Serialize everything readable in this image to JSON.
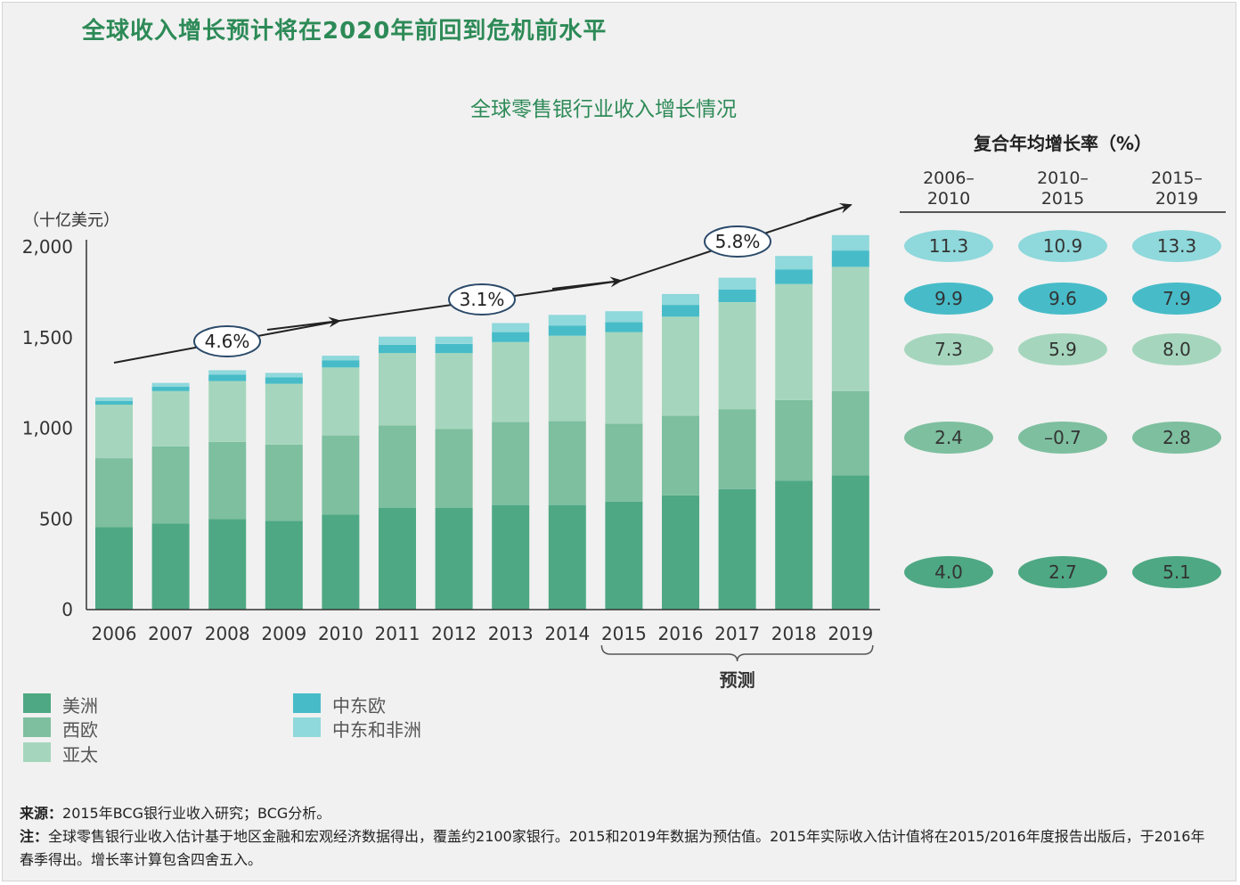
{
  "header": {
    "title": "全球收入增长预计将在2020年前回到危机前水平"
  },
  "chart_data": {
    "type": "bar",
    "stacked": true,
    "title": "全球零售银行业收入增长情况",
    "ylabel": "（十亿美元）",
    "ylim": [
      0,
      2000
    ],
    "yticks": [
      "0",
      "500",
      "1,000",
      "1,500",
      "2,000"
    ],
    "categories": [
      "2006",
      "2007",
      "2008",
      "2009",
      "2010",
      "2011",
      "2012",
      "2013",
      "2014",
      "2015",
      "2016",
      "2017",
      "2018",
      "2019"
    ],
    "series": [
      {
        "name": "美洲",
        "color": "#4ea884",
        "values": [
          455,
          475,
          500,
          490,
          525,
          560,
          560,
          575,
          575,
          595,
          630,
          665,
          710,
          740
        ]
      },
      {
        "name": "西欧",
        "color": "#7dbf9f",
        "values": [
          380,
          425,
          425,
          420,
          435,
          455,
          435,
          460,
          465,
          430,
          440,
          440,
          445,
          465
        ]
      },
      {
        "name": "亚太",
        "color": "#a5d6bd",
        "values": [
          295,
          305,
          335,
          335,
          375,
          400,
          420,
          440,
          470,
          505,
          545,
          590,
          640,
          685
        ]
      },
      {
        "name": "中东欧",
        "color": "#47bcc8",
        "values": [
          20,
          25,
          35,
          35,
          40,
          45,
          50,
          55,
          55,
          55,
          65,
          70,
          80,
          90
        ]
      },
      {
        "name": "中东和非洲",
        "color": "#8fd8db",
        "values": [
          20,
          20,
          25,
          25,
          25,
          45,
          40,
          50,
          60,
          60,
          60,
          65,
          75,
          85
        ]
      }
    ],
    "trend_labels": [
      "4.6%",
      "3.1%",
      "5.8%"
    ],
    "forecast_label": "预测",
    "forecast_range": [
      "2015",
      "2019"
    ],
    "cagr": {
      "title": "复合年均增长率（%）",
      "periods": [
        "2006–\n2010",
        "2010–\n2015",
        "2015–\n2019"
      ],
      "rows": [
        {
          "region": "中东和非洲",
          "values": [
            "11.3",
            "10.9",
            "13.3"
          ]
        },
        {
          "region": "中东欧",
          "values": [
            "9.9",
            "9.6",
            "7.9"
          ]
        },
        {
          "region": "亚太",
          "values": [
            "7.3",
            "5.9",
            "8.0"
          ]
        },
        {
          "region": "西欧",
          "values": [
            "2.4",
            "–0.7",
            "2.8"
          ]
        },
        {
          "region": "美洲",
          "values": [
            "4.0",
            "2.7",
            "5.1"
          ]
        }
      ]
    }
  },
  "notes": {
    "source_label": "来源：",
    "source_text": "2015年BCG银行业收入研究；BCG分析。",
    "note_label": "注：",
    "note_text": "全球零售银行业收入估计基于地区金融和宏观经济数据得出，覆盖约2100家银行。2015和2019年数据为预估值。2015年实际收入估计值将在2015/2016年度报告出版后，于2016年春季得出。增长率计算包含四舍五入。"
  }
}
